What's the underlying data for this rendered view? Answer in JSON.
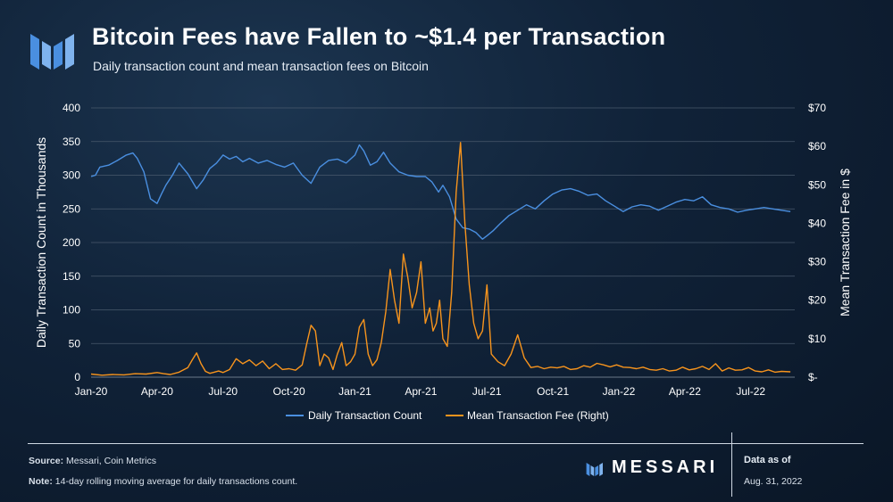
{
  "header": {
    "title": "Bitcoin Fees have Fallen to ~$1.4 per Transaction",
    "subtitle": "Daily transaction count and mean transaction fees on Bitcoin"
  },
  "footer": {
    "source_label": "Source:",
    "source_text": "Messari, Coin Metrics",
    "note_label": "Note:",
    "note_text": "14-day rolling moving average for daily transactions count.",
    "brand": "MESSARI",
    "asof_label": "Data as of",
    "asof_date": "Aug. 31, 2022"
  },
  "colors": {
    "count": "#4a8fe0",
    "fee": "#f7941d",
    "grid": "#4a5a6c",
    "text": "#ffffff"
  },
  "chart_data": {
    "type": "line",
    "title": "Bitcoin Fees have Fallen to ~$1.4 per Transaction",
    "ylabel": "Daily Transaction Count in Thousands",
    "y2label": "Mean Transaction Fee in $",
    "ylim": [
      0,
      400
    ],
    "y2lim": [
      0,
      70
    ],
    "x_range": [
      0,
      32
    ],
    "x_unit": "months since Jan-20",
    "x_ticks": [
      "Jan-20",
      "Apr-20",
      "Jul-20",
      "Oct-20",
      "Jan-21",
      "Apr-21",
      "Jul-21",
      "Oct-21",
      "Jan-22",
      "Apr-22",
      "Jul-22"
    ],
    "y_ticks": [
      "0",
      "50",
      "100",
      "150",
      "200",
      "250",
      "300",
      "350",
      "400"
    ],
    "y2_ticks": [
      "$-",
      "$10",
      "$20",
      "$30",
      "$40",
      "$50",
      "$60",
      "$70"
    ],
    "legend_position": "bottom-center",
    "series": [
      {
        "name": "Daily Transaction Count",
        "axis": "left",
        "x": [
          0,
          0.2,
          0.4,
          0.8,
          1.2,
          1.6,
          1.9,
          2.1,
          2.4,
          2.7,
          3.0,
          3.2,
          3.4,
          3.7,
          4.0,
          4.4,
          4.8,
          5.1,
          5.4,
          5.7,
          6.0,
          6.3,
          6.6,
          6.9,
          7.2,
          7.6,
          8.0,
          8.4,
          8.8,
          9.2,
          9.6,
          10.0,
          10.4,
          10.8,
          11.2,
          11.6,
          12.0,
          12.2,
          12.4,
          12.7,
          13.0,
          13.3,
          13.6,
          14.0,
          14.4,
          14.8,
          15.2,
          15.5,
          15.8,
          16.0,
          16.3,
          16.6,
          16.9,
          17.2,
          17.5,
          17.8,
          18.0,
          18.3,
          18.6,
          19.0,
          19.4,
          19.8,
          20.2,
          20.6,
          21.0,
          21.4,
          21.8,
          22.2,
          22.6,
          23.0,
          23.4,
          23.8,
          24.2,
          24.6,
          25.0,
          25.4,
          25.8,
          26.2,
          26.6,
          27.0,
          27.4,
          27.8,
          28.2,
          28.6,
          29.0,
          29.4,
          29.8,
          30.2,
          30.6,
          31.0,
          31.4,
          31.8
        ],
        "values": [
          298,
          300,
          312,
          315,
          322,
          330,
          333,
          325,
          305,
          265,
          258,
          272,
          285,
          300,
          318,
          302,
          280,
          293,
          310,
          318,
          330,
          324,
          328,
          320,
          325,
          318,
          322,
          316,
          312,
          318,
          300,
          288,
          312,
          322,
          324,
          318,
          330,
          345,
          336,
          315,
          320,
          334,
          318,
          305,
          300,
          298,
          298,
          290,
          275,
          285,
          268,
          235,
          222,
          220,
          215,
          205,
          210,
          218,
          228,
          240,
          248,
          256,
          250,
          262,
          272,
          278,
          280,
          276,
          270,
          272,
          262,
          254,
          246,
          253,
          256,
          254,
          248,
          254,
          260,
          264,
          262,
          268,
          256,
          252,
          250,
          245,
          248,
          250,
          252,
          250,
          248,
          246
        ]
      },
      {
        "name": "Mean Transaction Fee (Right)",
        "axis": "right",
        "x": [
          0,
          0.5,
          1.0,
          1.5,
          2.0,
          2.5,
          3.0,
          3.3,
          3.6,
          4.0,
          4.4,
          4.6,
          4.8,
          5.0,
          5.2,
          5.4,
          5.6,
          5.8,
          6.0,
          6.3,
          6.6,
          6.9,
          7.2,
          7.5,
          7.8,
          8.1,
          8.4,
          8.7,
          9.0,
          9.3,
          9.6,
          9.8,
          10.0,
          10.2,
          10.4,
          10.6,
          10.8,
          11.0,
          11.2,
          11.4,
          11.6,
          11.8,
          12.0,
          12.2,
          12.4,
          12.6,
          12.8,
          13.0,
          13.2,
          13.4,
          13.6,
          13.8,
          14.0,
          14.2,
          14.4,
          14.6,
          14.8,
          15.0,
          15.2,
          15.4,
          15.55,
          15.7,
          15.85,
          16.0,
          16.2,
          16.4,
          16.6,
          16.8,
          17.0,
          17.2,
          17.4,
          17.6,
          17.8,
          18.0,
          18.2,
          18.5,
          18.8,
          19.1,
          19.4,
          19.7,
          20.0,
          20.3,
          20.6,
          20.9,
          21.2,
          21.5,
          21.8,
          22.1,
          22.4,
          22.7,
          23.0,
          23.3,
          23.6,
          23.9,
          24.2,
          24.5,
          24.8,
          25.1,
          25.4,
          25.7,
          26.0,
          26.3,
          26.6,
          26.9,
          27.2,
          27.5,
          27.8,
          28.1,
          28.4,
          28.7,
          29.0,
          29.3,
          29.6,
          29.9,
          30.2,
          30.5,
          30.8,
          31.1,
          31.4,
          31.8
        ],
        "values": [
          0.8,
          0.5,
          0.7,
          0.6,
          0.9,
          0.8,
          1.2,
          0.9,
          0.7,
          1.3,
          2.5,
          4.5,
          6.3,
          3.5,
          1.5,
          1.0,
          1.3,
          1.6,
          1.2,
          2.0,
          4.8,
          3.5,
          4.5,
          3.0,
          4.2,
          2.2,
          3.5,
          2.0,
          2.2,
          1.8,
          3.2,
          8.5,
          13.5,
          12.0,
          3.0,
          6.0,
          5.0,
          2.0,
          6.0,
          9.0,
          3.0,
          4.0,
          6.0,
          13.0,
          15.0,
          6.0,
          3.0,
          4.5,
          9.0,
          17.0,
          28.0,
          20.0,
          14.0,
          32.0,
          26.0,
          18.0,
          22.0,
          30.0,
          14.0,
          18.0,
          12.0,
          14.0,
          20.0,
          10.0,
          8.0,
          22.0,
          48.0,
          61.0,
          40.0,
          24.0,
          14.0,
          10.0,
          12.0,
          24.0,
          6.0,
          4.0,
          3.0,
          6.0,
          11.0,
          5.0,
          2.5,
          2.8,
          2.2,
          2.6,
          2.4,
          2.8,
          2.0,
          2.2,
          3.0,
          2.6,
          3.6,
          3.2,
          2.7,
          3.2,
          2.6,
          2.5,
          2.2,
          2.6,
          2.0,
          1.8,
          2.2,
          1.6,
          1.8,
          2.6,
          1.9,
          2.2,
          2.8,
          2.0,
          3.5,
          1.6,
          2.4,
          1.8,
          1.9,
          2.5,
          1.6,
          1.4,
          1.9,
          1.3,
          1.5,
          1.4
        ]
      }
    ]
  }
}
